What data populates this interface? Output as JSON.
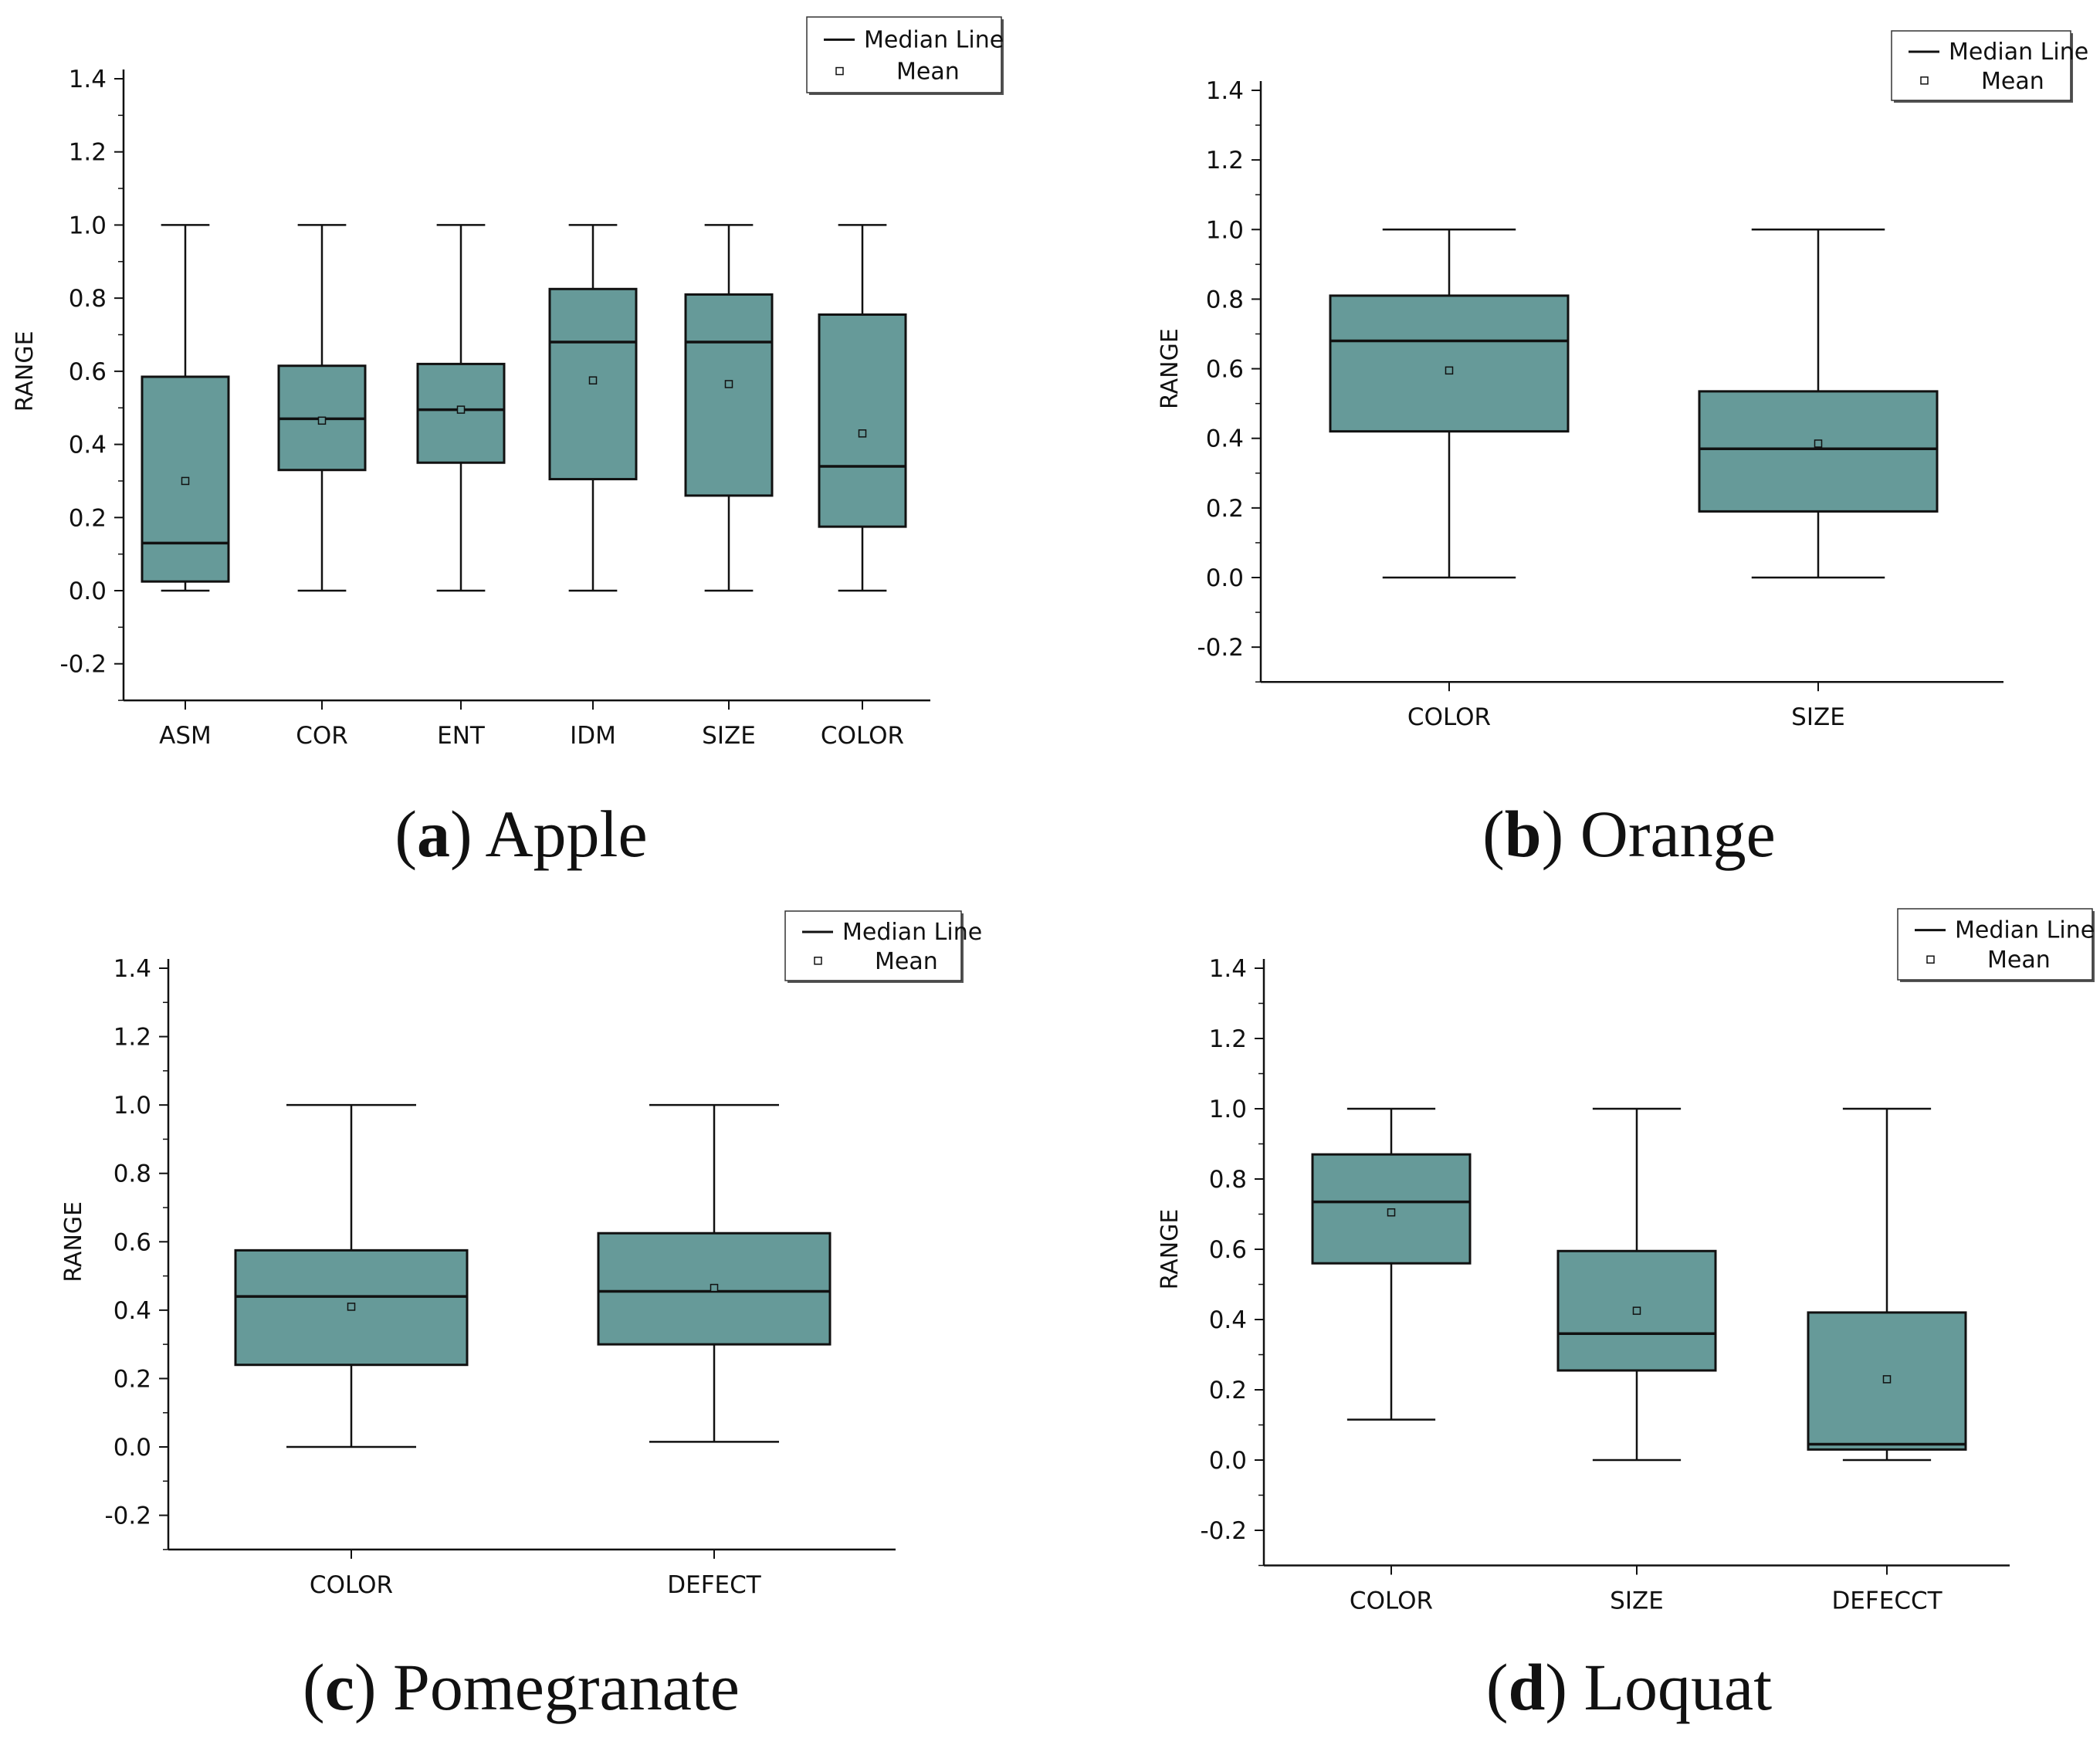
{
  "colors": {
    "box_fill": "#669a99",
    "line": "#111111",
    "background": "#ffffff"
  },
  "legend": {
    "median_label": "Median Line",
    "mean_label": "Mean"
  },
  "chart_data": [
    {
      "id": "a",
      "type": "boxplot",
      "ylabel": "RANGE",
      "ylim": [
        -0.3,
        1.4
      ],
      "yticks": [
        -0.2,
        0.0,
        0.2,
        0.4,
        0.6,
        0.8,
        1.0,
        1.2,
        1.4
      ],
      "caption": {
        "letter": "a",
        "name": "Apple"
      },
      "boxes": [
        {
          "label": "ASM",
          "min": 0.0,
          "q1": 0.025,
          "median": 0.13,
          "q3": 0.585,
          "max": 1.0,
          "mean": 0.3
        },
        {
          "label": "COR",
          "min": 0.0,
          "q1": 0.33,
          "median": 0.47,
          "q3": 0.615,
          "max": 1.0,
          "mean": 0.465
        },
        {
          "label": "ENT",
          "min": 0.0,
          "q1": 0.35,
          "median": 0.495,
          "q3": 0.62,
          "max": 1.0,
          "mean": 0.495
        },
        {
          "label": "IDM",
          "min": 0.0,
          "q1": 0.305,
          "median": 0.68,
          "q3": 0.825,
          "max": 1.0,
          "mean": 0.575
        },
        {
          "label": "SIZE",
          "min": 0.0,
          "q1": 0.26,
          "median": 0.68,
          "q3": 0.81,
          "max": 1.0,
          "mean": 0.565
        },
        {
          "label": "COLOR",
          "min": 0.0,
          "q1": 0.175,
          "median": 0.34,
          "q3": 0.755,
          "max": 1.0,
          "mean": 0.43
        }
      ]
    },
    {
      "id": "b",
      "type": "boxplot",
      "ylabel": "RANGE",
      "ylim": [
        -0.3,
        1.4
      ],
      "yticks": [
        -0.2,
        0.0,
        0.2,
        0.4,
        0.6,
        0.8,
        1.0,
        1.2,
        1.4
      ],
      "caption": {
        "letter": "b",
        "name": "Orange"
      },
      "boxes": [
        {
          "label": "COLOR",
          "min": 0.0,
          "q1": 0.42,
          "median": 0.68,
          "q3": 0.81,
          "max": 1.0,
          "mean": 0.595
        },
        {
          "label": "SIZE",
          "min": 0.0,
          "q1": 0.19,
          "median": 0.37,
          "q3": 0.535,
          "max": 1.0,
          "mean": 0.385
        }
      ]
    },
    {
      "id": "c",
      "type": "boxplot",
      "ylabel": "RANGE",
      "ylim": [
        -0.3,
        1.4
      ],
      "yticks": [
        -0.2,
        0.0,
        0.2,
        0.4,
        0.6,
        0.8,
        1.0,
        1.2,
        1.4
      ],
      "caption": {
        "letter": "c",
        "name": "Pomegranate"
      },
      "boxes": [
        {
          "label": "COLOR",
          "min": 0.0,
          "q1": 0.24,
          "median": 0.44,
          "q3": 0.575,
          "max": 1.0,
          "mean": 0.41
        },
        {
          "label": "DEFECT",
          "min": 0.015,
          "q1": 0.3,
          "median": 0.455,
          "q3": 0.625,
          "max": 1.0,
          "mean": 0.465
        }
      ]
    },
    {
      "id": "d",
      "type": "boxplot",
      "ylabel": "RANGE",
      "ylim": [
        -0.3,
        1.4
      ],
      "yticks": [
        -0.2,
        0.0,
        0.2,
        0.4,
        0.6,
        0.8,
        1.0,
        1.2,
        1.4
      ],
      "caption": {
        "letter": "d",
        "name": "Loquat"
      },
      "boxes": [
        {
          "label": "COLOR",
          "min": 0.115,
          "q1": 0.56,
          "median": 0.735,
          "q3": 0.87,
          "max": 1.0,
          "mean": 0.705
        },
        {
          "label": "SIZE",
          "min": 0.0,
          "q1": 0.255,
          "median": 0.36,
          "q3": 0.595,
          "max": 1.0,
          "mean": 0.425
        },
        {
          "label": "DEFECCT",
          "min": 0.0,
          "q1": 0.03,
          "median": 0.045,
          "q3": 0.42,
          "max": 1.0,
          "mean": 0.23
        }
      ]
    }
  ]
}
